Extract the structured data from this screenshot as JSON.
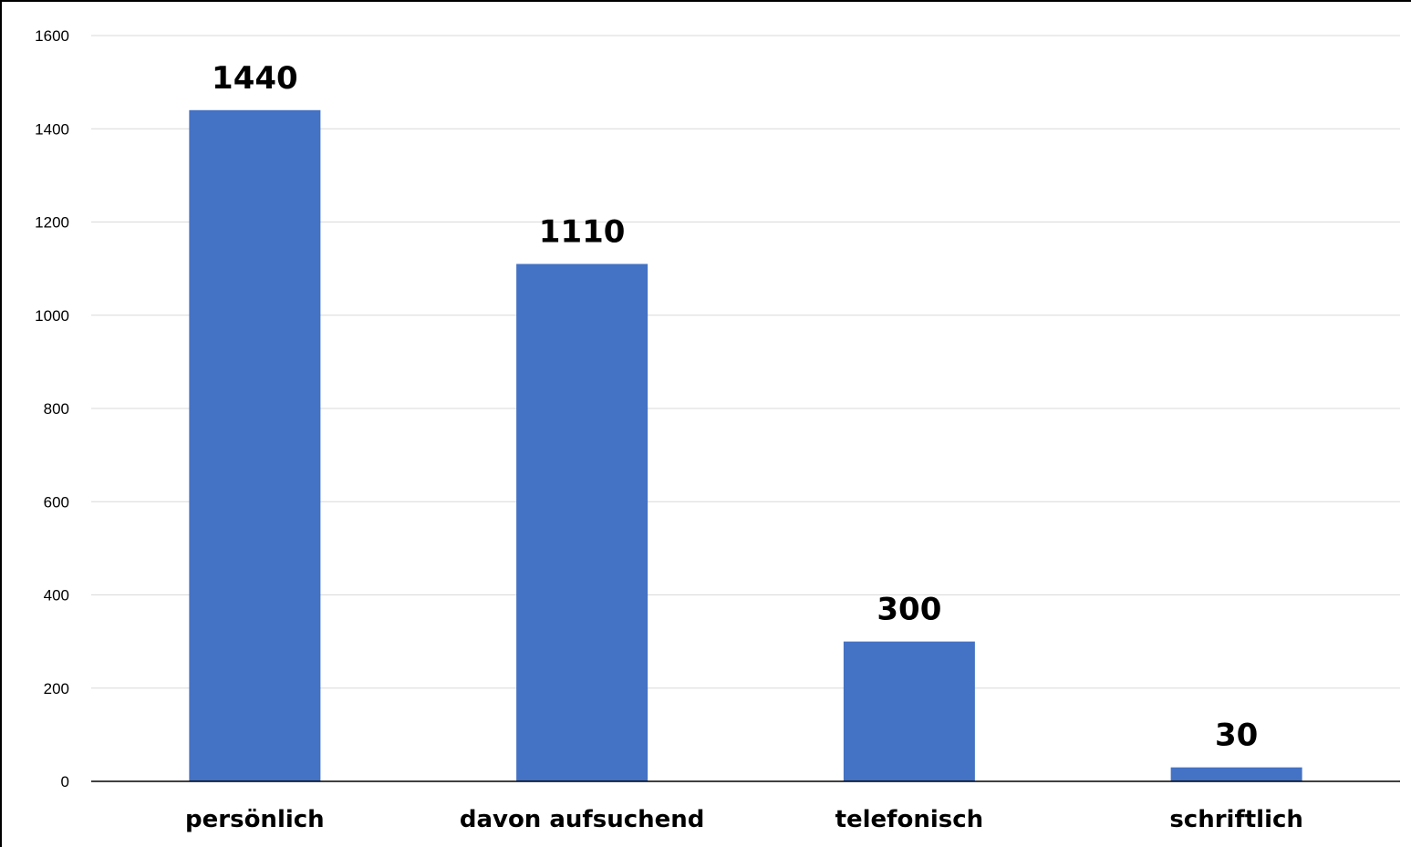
{
  "chart_data": {
    "type": "bar",
    "title": "",
    "xlabel": "",
    "ylabel": "",
    "categories": [
      "persönlich",
      "davon aufsuchend",
      "telefonisch",
      "schriftlich"
    ],
    "values": [
      1440,
      1110,
      300,
      30
    ],
    "data_labels": [
      "1440",
      "1110",
      "300",
      "30"
    ],
    "ylim": [
      0,
      1600
    ],
    "yticks": [
      0,
      200,
      400,
      600,
      800,
      1000,
      1200,
      1400,
      1600
    ],
    "grid": true,
    "legend": "none",
    "colors": {
      "bar": "#4472C4",
      "grid": "#D9D9D9",
      "axis": "#000000"
    }
  }
}
